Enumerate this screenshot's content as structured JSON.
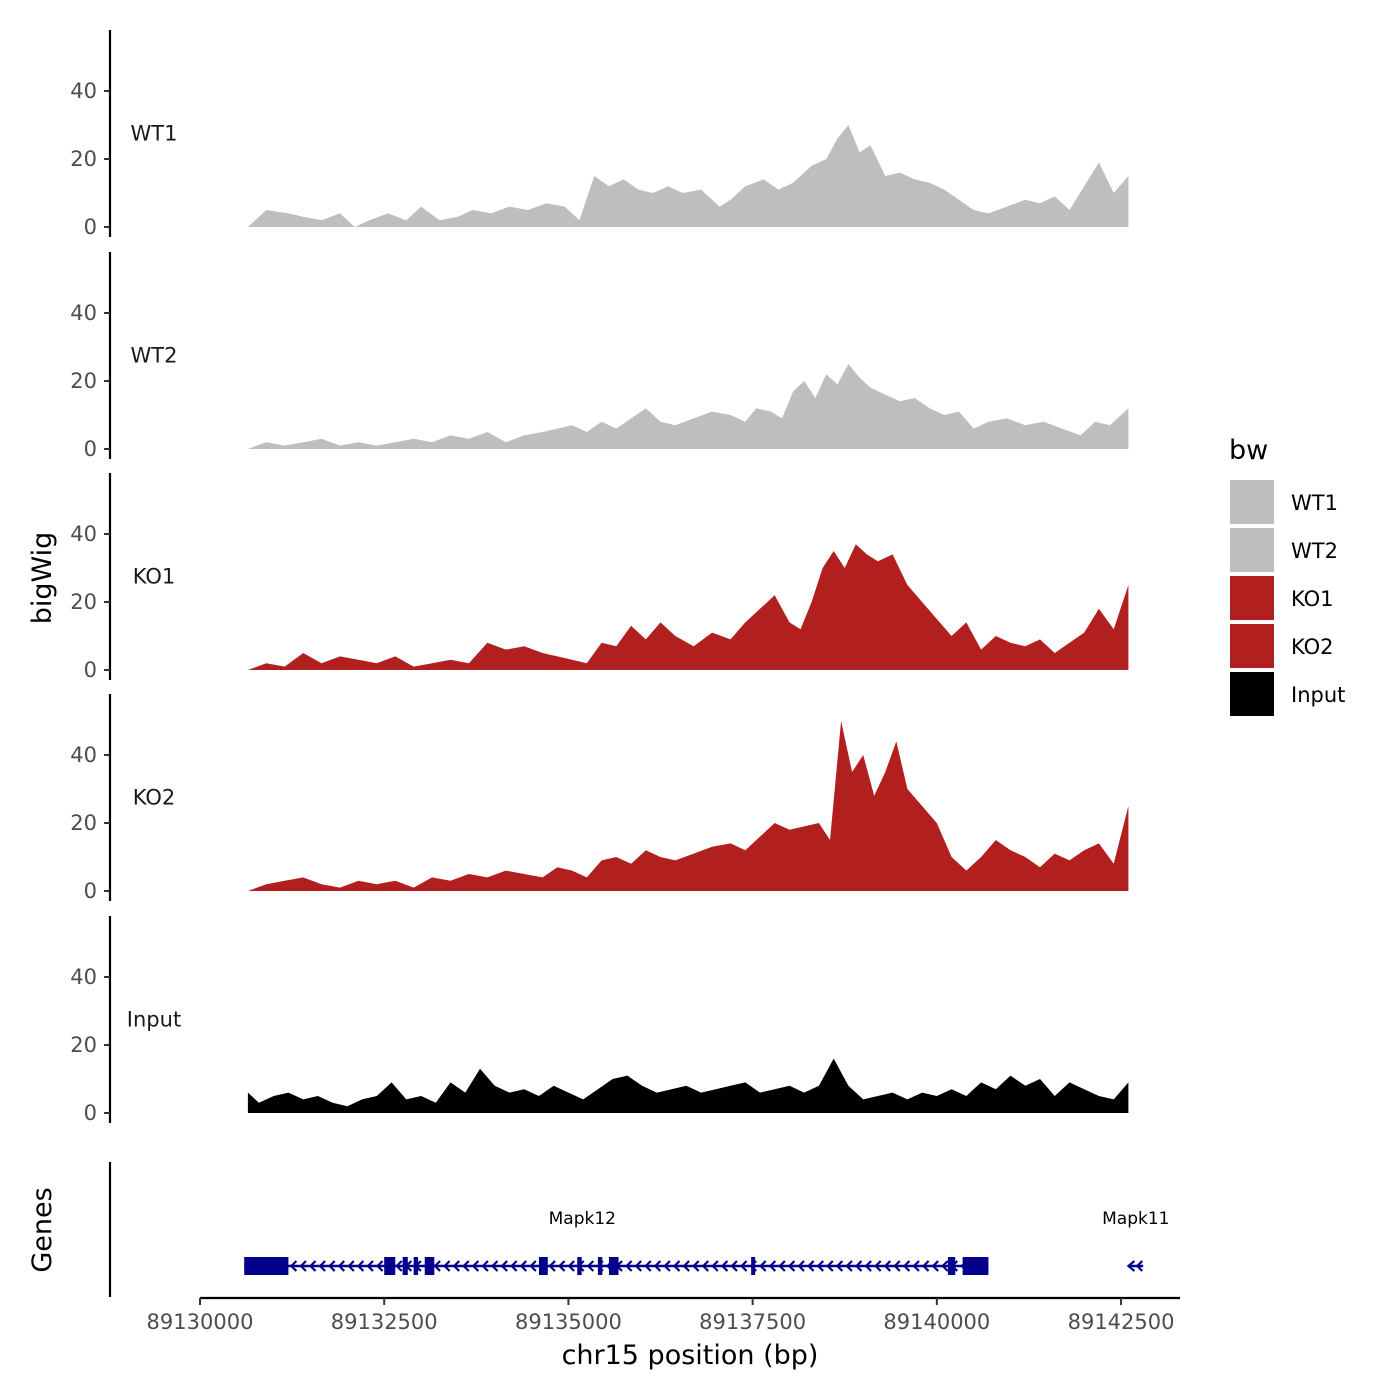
{
  "chart_data": {
    "type": "area",
    "title": "",
    "ylabel": "bigWig",
    "genes_label": "Genes",
    "xlabel": "chr15 position (bp)",
    "xlim": [
      89130000,
      89143300
    ],
    "ylim": [
      0,
      57
    ],
    "y_ticks": [
      0,
      20,
      40
    ],
    "x_ticks": [
      89130000,
      89132500,
      89135000,
      89137500,
      89140000,
      89142500
    ],
    "x_tick_labels": [
      "89130000",
      "89132500",
      "89135000",
      "89137500",
      "89140000",
      "89142500"
    ],
    "legend": {
      "title": "bw",
      "placement": "right",
      "entries": [
        {
          "label": "WT1",
          "color": "#bebebe"
        },
        {
          "label": "WT2",
          "color": "#bebebe"
        },
        {
          "label": "KO1",
          "color": "#b21f1f"
        },
        {
          "label": "KO2",
          "color": "#b21f1f"
        },
        {
          "label": "Input",
          "color": "#000000"
        }
      ]
    },
    "series": [
      {
        "name": "WT1",
        "color": "#bebebe",
        "x": [
          89130650,
          89130900,
          89131200,
          89131400,
          89131650,
          89131900,
          89132100,
          89132300,
          89132550,
          89132800,
          89133000,
          89133250,
          89133500,
          89133700,
          89133950,
          89134200,
          89134450,
          89134700,
          89134950,
          89135150,
          89135350,
          89135550,
          89135750,
          89135950,
          89136150,
          89136350,
          89136550,
          89136800,
          89137050,
          89137200,
          89137400,
          89137650,
          89137850,
          89138050,
          89138300,
          89138500,
          89138650,
          89138800,
          89138950,
          89139100,
          89139300,
          89139500,
          89139700,
          89139900,
          89140100,
          89140300,
          89140500,
          89140700,
          89140950,
          89141200,
          89141400,
          89141600,
          89141800,
          89142000,
          89142200,
          89142400,
          89142600
        ],
        "values": [
          0,
          5,
          4,
          3,
          2,
          4,
          0,
          2,
          4,
          2,
          6,
          2,
          3,
          5,
          4,
          6,
          5,
          7,
          6,
          2,
          15,
          12,
          14,
          11,
          10,
          12,
          10,
          11,
          6,
          8,
          12,
          14,
          11,
          13,
          18,
          20,
          26,
          30,
          22,
          24,
          15,
          16,
          14,
          13,
          11,
          8,
          5,
          4,
          6,
          8,
          7,
          9,
          5,
          12,
          19,
          10,
          15
        ]
      },
      {
        "name": "WT2",
        "color": "#bebebe",
        "x": [
          89130650,
          89130900,
          89131150,
          89131400,
          89131650,
          89131900,
          89132150,
          89132400,
          89132650,
          89132900,
          89133150,
          89133400,
          89133650,
          89133900,
          89134150,
          89134400,
          89134650,
          89134850,
          89135050,
          89135250,
          89135450,
          89135650,
          89135850,
          89136050,
          89136250,
          89136450,
          89136700,
          89136950,
          89137200,
          89137400,
          89137550,
          89137750,
          89137900,
          89138050,
          89138200,
          89138350,
          89138500,
          89138650,
          89138800,
          89138950,
          89139100,
          89139300,
          89139500,
          89139700,
          89139900,
          89140100,
          89140300,
          89140500,
          89140700,
          89140950,
          89141200,
          89141450,
          89141700,
          89141950,
          89142150,
          89142350,
          89142600
        ],
        "values": [
          0,
          2,
          1,
          2,
          3,
          1,
          2,
          1,
          2,
          3,
          2,
          4,
          3,
          5,
          2,
          4,
          5,
          6,
          7,
          5,
          8,
          6,
          9,
          12,
          8,
          7,
          9,
          11,
          10,
          8,
          12,
          11,
          9,
          17,
          20,
          15,
          22,
          19,
          25,
          21,
          18,
          16,
          14,
          15,
          12,
          10,
          11,
          6,
          8,
          9,
          7,
          8,
          6,
          4,
          8,
          7,
          12
        ]
      },
      {
        "name": "KO1",
        "color": "#b21f1f",
        "x": [
          89130650,
          89130900,
          89131150,
          89131400,
          89131650,
          89131900,
          89132150,
          89132400,
          89132650,
          89132900,
          89133150,
          89133400,
          89133650,
          89133900,
          89134150,
          89134400,
          89134650,
          89134850,
          89135050,
          89135250,
          89135450,
          89135650,
          89135850,
          89136050,
          89136250,
          89136450,
          89136700,
          89136950,
          89137200,
          89137400,
          89137600,
          89137800,
          89138000,
          89138150,
          89138300,
          89138450,
          89138600,
          89138750,
          89138900,
          89139050,
          89139200,
          89139400,
          89139600,
          89139800,
          89140000,
          89140200,
          89140400,
          89140600,
          89140800,
          89141000,
          89141200,
          89141400,
          89141600,
          89141800,
          89142000,
          89142200,
          89142400,
          89142600
        ],
        "values": [
          0,
          2,
          1,
          5,
          2,
          4,
          3,
          2,
          4,
          1,
          2,
          3,
          2,
          8,
          6,
          7,
          5,
          4,
          3,
          2,
          8,
          7,
          13,
          9,
          14,
          10,
          7,
          11,
          9,
          14,
          18,
          22,
          14,
          12,
          20,
          30,
          35,
          30,
          37,
          34,
          32,
          34,
          25,
          20,
          15,
          10,
          14,
          6,
          10,
          8,
          7,
          9,
          5,
          8,
          11,
          18,
          12,
          25
        ]
      },
      {
        "name": "KO2",
        "color": "#b21f1f",
        "x": [
          89130650,
          89130900,
          89131150,
          89131400,
          89131650,
          89131900,
          89132150,
          89132400,
          89132650,
          89132900,
          89133150,
          89133400,
          89133650,
          89133900,
          89134150,
          89134400,
          89134650,
          89134850,
          89135050,
          89135250,
          89135450,
          89135650,
          89135850,
          89136050,
          89136250,
          89136450,
          89136700,
          89136950,
          89137200,
          89137400,
          89137600,
          89137800,
          89138000,
          89138200,
          89138400,
          89138550,
          89138700,
          89138850,
          89139000,
          89139150,
          89139300,
          89139450,
          89139600,
          89139800,
          89140000,
          89140200,
          89140400,
          89140600,
          89140800,
          89141000,
          89141200,
          89141400,
          89141600,
          89141800,
          89142000,
          89142200,
          89142400,
          89142600
        ],
        "values": [
          0,
          2,
          3,
          4,
          2,
          1,
          3,
          2,
          3,
          1,
          4,
          3,
          5,
          4,
          6,
          5,
          4,
          7,
          6,
          4,
          9,
          10,
          8,
          12,
          10,
          9,
          11,
          13,
          14,
          12,
          16,
          20,
          18,
          19,
          20,
          15,
          50,
          35,
          40,
          28,
          35,
          44,
          30,
          25,
          20,
          10,
          6,
          10,
          15,
          12,
          10,
          7,
          11,
          9,
          12,
          14,
          8,
          25
        ]
      },
      {
        "name": "Input",
        "color": "#000000",
        "x": [
          89130650,
          89130800,
          89131000,
          89131200,
          89131400,
          89131600,
          89131800,
          89132000,
          89132200,
          89132400,
          89132600,
          89132800,
          89133000,
          89133200,
          89133400,
          89133600,
          89133800,
          89134000,
          89134200,
          89134400,
          89134600,
          89134800,
          89135000,
          89135200,
          89135400,
          89135600,
          89135800,
          89136000,
          89136200,
          89136400,
          89136600,
          89136800,
          89137000,
          89137200,
          89137400,
          89137600,
          89137800,
          89138000,
          89138200,
          89138400,
          89138600,
          89138800,
          89139000,
          89139200,
          89139400,
          89139600,
          89139800,
          89140000,
          89140200,
          89140400,
          89140600,
          89140800,
          89141000,
          89141200,
          89141400,
          89141600,
          89141800,
          89142000,
          89142200,
          89142400,
          89142600
        ],
        "values": [
          6,
          3,
          5,
          6,
          4,
          5,
          3,
          2,
          4,
          5,
          9,
          4,
          5,
          3,
          9,
          6,
          13,
          8,
          6,
          7,
          5,
          8,
          6,
          4,
          7,
          10,
          11,
          8,
          6,
          7,
          8,
          6,
          7,
          8,
          9,
          6,
          7,
          8,
          6,
          8,
          16,
          8,
          4,
          5,
          6,
          4,
          6,
          5,
          7,
          5,
          9,
          7,
          11,
          8,
          10,
          5,
          9,
          7,
          5,
          4,
          9
        ]
      }
    ],
    "genes": [
      {
        "name": "Mapk12",
        "strand": "-",
        "color": "#00008b",
        "start": 89130600,
        "end": 89140700,
        "label_pos": 89135650,
        "exons": [
          [
            89130600,
            89131200
          ],
          [
            89132500,
            89132650
          ],
          [
            89132750,
            89132820
          ],
          [
            89132900,
            89132960
          ],
          [
            89133050,
            89133180
          ],
          [
            89134600,
            89134720
          ],
          [
            89135120,
            89135180
          ],
          [
            89135400,
            89135460
          ],
          [
            89135550,
            89135680
          ],
          [
            89137480,
            89137530
          ],
          [
            89140150,
            89140250
          ],
          [
            89140350,
            89140700
          ]
        ]
      },
      {
        "name": "Mapk11",
        "strand": "-",
        "color": "#00008b",
        "start": 89142600,
        "end": 89142800,
        "label_pos": 89142700,
        "exons": []
      }
    ]
  }
}
